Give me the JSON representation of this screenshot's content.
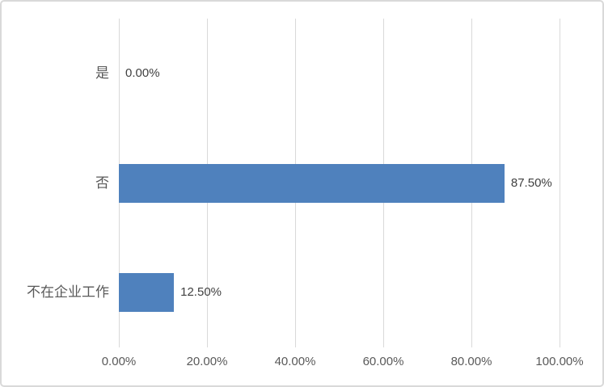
{
  "chart_data": {
    "type": "bar",
    "orientation": "horizontal",
    "title": "",
    "xlabel": "",
    "ylabel": "",
    "categories": [
      "是",
      "否",
      "不在企业工作"
    ],
    "series": [
      {
        "name": "",
        "values": [
          0,
          87.5,
          12.5
        ],
        "value_labels": [
          "0.00%",
          "87.50%",
          "12.50%"
        ]
      }
    ],
    "x_axis": {
      "min": 0,
      "max": 100,
      "ticks": [
        0,
        20,
        40,
        60,
        80,
        100
      ],
      "tick_labels": [
        "0.00%",
        "20.00%",
        "40.00%",
        "60.00%",
        "80.00%",
        "100.00%"
      ]
    },
    "grid": "vertical-only",
    "legend": "none",
    "colors": {
      "bar": "#4F81BD",
      "gridline": "#D9D9D9",
      "axis_text": "#595959",
      "data_label_text": "#404040",
      "background": "#FFFFFF",
      "chart_border": "#D9D9D9"
    }
  }
}
